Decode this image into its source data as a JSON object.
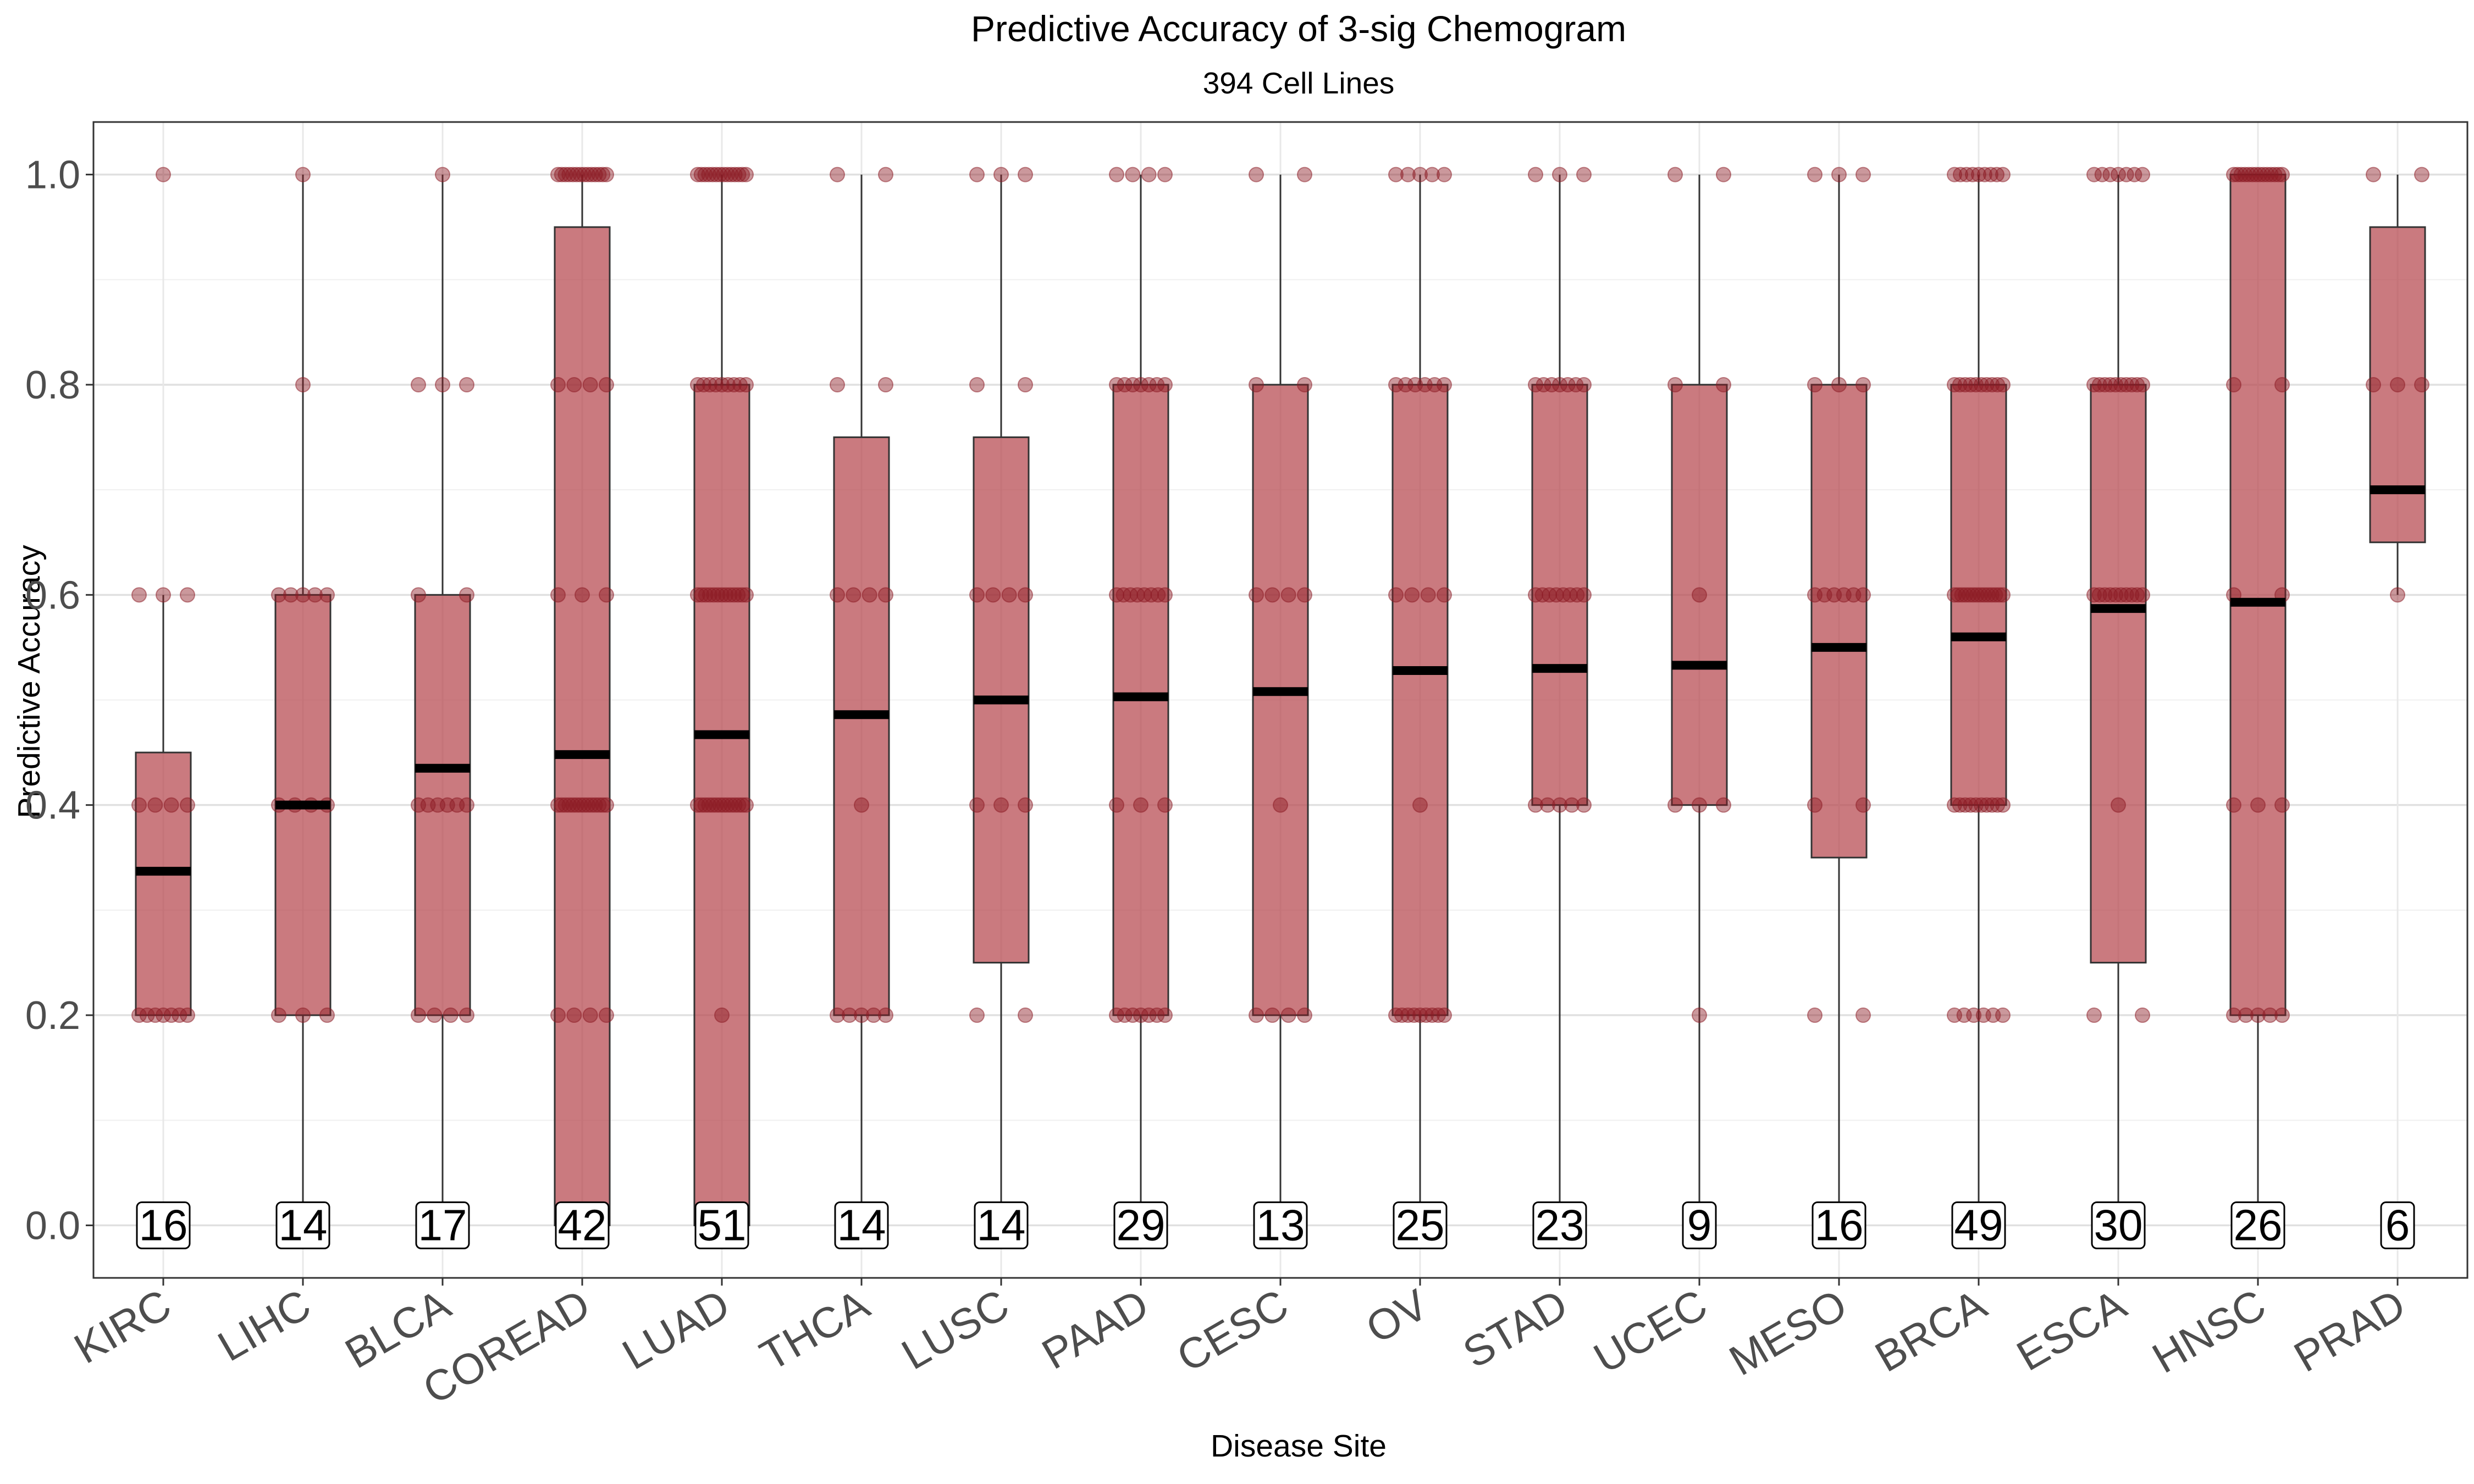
{
  "chart_data": {
    "type": "box",
    "title": "Predictive Accuracy of 3-sig Chemogram",
    "subtitle": "394 Cell Lines",
    "xlabel": "Disease Site",
    "ylabel": "Predictive Accuracy",
    "ylim": [
      -0.05,
      1.05
    ],
    "y_ticks": [
      "0.0",
      "0.2",
      "0.4",
      "0.6",
      "0.8",
      "1.0"
    ],
    "grid": true,
    "colors": {
      "box_fill": "#b5474d",
      "point": "#8b1a24",
      "median": "#000000"
    },
    "categories": [
      "KIRC",
      "LIHC",
      "BLCA",
      "COREAD",
      "LUAD",
      "THCA",
      "LUSC",
      "PAAD",
      "CESC",
      "OV",
      "STAD",
      "UCEC",
      "MESO",
      "BRCA",
      "ESCA",
      "HNSC",
      "PRAD"
    ],
    "counts": [
      16,
      14,
      17,
      42,
      51,
      14,
      14,
      29,
      13,
      25,
      23,
      9,
      16,
      49,
      30,
      26,
      6
    ],
    "boxes": [
      {
        "q1": 0.2,
        "median": 0.337,
        "q3": 0.45,
        "whisker_low": 0.2,
        "whisker_high": 0.6,
        "points": [
          {
            "y": 0.2,
            "n": 7
          },
          {
            "y": 0.4,
            "n": 4
          },
          {
            "y": 0.6,
            "n": 3
          },
          {
            "y": 1.0,
            "n": 1
          }
        ]
      },
      {
        "q1": 0.2,
        "median": 0.4,
        "q3": 0.6,
        "whisker_low": 0.0,
        "whisker_high": 1.0,
        "points": [
          {
            "y": 0.2,
            "n": 3
          },
          {
            "y": 0.4,
            "n": 4
          },
          {
            "y": 0.6,
            "n": 5
          },
          {
            "y": 0.8,
            "n": 1
          },
          {
            "y": 1.0,
            "n": 1
          }
        ]
      },
      {
        "q1": 0.2,
        "median": 0.435,
        "q3": 0.6,
        "whisker_low": 0.0,
        "whisker_high": 1.0,
        "points": [
          {
            "y": 0.2,
            "n": 4
          },
          {
            "y": 0.4,
            "n": 6
          },
          {
            "y": 0.6,
            "n": 2
          },
          {
            "y": 0.8,
            "n": 3
          },
          {
            "y": 1.0,
            "n": 1
          }
        ]
      },
      {
        "q1": 0.0,
        "median": 0.448,
        "q3": 0.95,
        "whisker_low": 0.0,
        "whisker_high": 1.0,
        "points": [
          {
            "y": 0.2,
            "n": 4
          },
          {
            "y": 0.4,
            "n": 14
          },
          {
            "y": 0.6,
            "n": 3
          },
          {
            "y": 0.8,
            "n": 4
          },
          {
            "y": 1.0,
            "n": 14
          }
        ]
      },
      {
        "q1": 0.0,
        "median": 0.467,
        "q3": 0.8,
        "whisker_low": 0.0,
        "whisker_high": 1.0,
        "points": [
          {
            "y": 0.2,
            "n": 1
          },
          {
            "y": 0.4,
            "n": 14
          },
          {
            "y": 0.6,
            "n": 13
          },
          {
            "y": 0.8,
            "n": 9
          },
          {
            "y": 1.0,
            "n": 14
          }
        ]
      },
      {
        "q1": 0.2,
        "median": 0.486,
        "q3": 0.75,
        "whisker_low": 0.0,
        "whisker_high": 1.0,
        "points": [
          {
            "y": 0.2,
            "n": 5
          },
          {
            "y": 0.4,
            "n": 1
          },
          {
            "y": 0.6,
            "n": 4
          },
          {
            "y": 0.8,
            "n": 2
          },
          {
            "y": 1.0,
            "n": 2
          }
        ]
      },
      {
        "q1": 0.25,
        "median": 0.5,
        "q3": 0.75,
        "whisker_low": 0.0,
        "whisker_high": 1.0,
        "points": [
          {
            "y": 0.2,
            "n": 2
          },
          {
            "y": 0.4,
            "n": 3
          },
          {
            "y": 0.6,
            "n": 4
          },
          {
            "y": 0.8,
            "n": 2
          },
          {
            "y": 1.0,
            "n": 3
          }
        ]
      },
      {
        "q1": 0.2,
        "median": 0.503,
        "q3": 0.8,
        "whisker_low": 0.0,
        "whisker_high": 1.0,
        "points": [
          {
            "y": 0.2,
            "n": 7
          },
          {
            "y": 0.4,
            "n": 3
          },
          {
            "y": 0.6,
            "n": 8
          },
          {
            "y": 0.8,
            "n": 7
          },
          {
            "y": 1.0,
            "n": 4
          }
        ]
      },
      {
        "q1": 0.2,
        "median": 0.508,
        "q3": 0.8,
        "whisker_low": 0.0,
        "whisker_high": 1.0,
        "points": [
          {
            "y": 0.2,
            "n": 4
          },
          {
            "y": 0.4,
            "n": 1
          },
          {
            "y": 0.6,
            "n": 4
          },
          {
            "y": 0.8,
            "n": 2
          },
          {
            "y": 1.0,
            "n": 2
          }
        ]
      },
      {
        "q1": 0.2,
        "median": 0.528,
        "q3": 0.8,
        "whisker_low": 0.0,
        "whisker_high": 1.0,
        "points": [
          {
            "y": 0.2,
            "n": 9
          },
          {
            "y": 0.4,
            "n": 1
          },
          {
            "y": 0.6,
            "n": 4
          },
          {
            "y": 0.8,
            "n": 6
          },
          {
            "y": 1.0,
            "n": 5
          }
        ]
      },
      {
        "q1": 0.4,
        "median": 0.53,
        "q3": 0.8,
        "whisker_low": 0.0,
        "whisker_high": 1.0,
        "points": [
          {
            "y": 0.4,
            "n": 5
          },
          {
            "y": 0.6,
            "n": 8
          },
          {
            "y": 0.8,
            "n": 7
          },
          {
            "y": 1.0,
            "n": 3
          }
        ]
      },
      {
        "q1": 0.4,
        "median": 0.533,
        "q3": 0.8,
        "whisker_low": 0.0,
        "whisker_high": 1.0,
        "points": [
          {
            "y": 0.2,
            "n": 1
          },
          {
            "y": 0.4,
            "n": 3
          },
          {
            "y": 0.6,
            "n": 1
          },
          {
            "y": 0.8,
            "n": 2
          },
          {
            "y": 1.0,
            "n": 2
          }
        ]
      },
      {
        "q1": 0.35,
        "median": 0.55,
        "q3": 0.8,
        "whisker_low": 0.0,
        "whisker_high": 1.0,
        "points": [
          {
            "y": 0.2,
            "n": 2
          },
          {
            "y": 0.4,
            "n": 2
          },
          {
            "y": 0.6,
            "n": 6
          },
          {
            "y": 0.8,
            "n": 3
          },
          {
            "y": 1.0,
            "n": 3
          }
        ]
      },
      {
        "q1": 0.4,
        "median": 0.56,
        "q3": 0.8,
        "whisker_low": 0.0,
        "whisker_high": 1.0,
        "points": [
          {
            "y": 0.2,
            "n": 6
          },
          {
            "y": 0.4,
            "n": 10
          },
          {
            "y": 0.6,
            "n": 14
          },
          {
            "y": 0.8,
            "n": 10
          },
          {
            "y": 1.0,
            "n": 9
          }
        ]
      },
      {
        "q1": 0.25,
        "median": 0.587,
        "q3": 0.8,
        "whisker_low": 0.0,
        "whisker_high": 1.0,
        "points": [
          {
            "y": 0.2,
            "n": 2
          },
          {
            "y": 0.4,
            "n": 1
          },
          {
            "y": 0.6,
            "n": 10
          },
          {
            "y": 0.8,
            "n": 10
          },
          {
            "y": 1.0,
            "n": 7
          }
        ]
      },
      {
        "q1": 0.2,
        "median": 0.593,
        "q3": 1.0,
        "whisker_low": 0.0,
        "whisker_high": 1.0,
        "points": [
          {
            "y": 0.2,
            "n": 5
          },
          {
            "y": 0.4,
            "n": 3
          },
          {
            "y": 0.6,
            "n": 2
          },
          {
            "y": 0.8,
            "n": 2
          },
          {
            "y": 1.0,
            "n": 14
          }
        ]
      },
      {
        "q1": 0.65,
        "median": 0.7,
        "q3": 0.95,
        "whisker_low": 0.6,
        "whisker_high": 1.0,
        "points": [
          {
            "y": 0.6,
            "n": 1
          },
          {
            "y": 0.8,
            "n": 3
          },
          {
            "y": 1.0,
            "n": 2
          }
        ]
      }
    ]
  }
}
